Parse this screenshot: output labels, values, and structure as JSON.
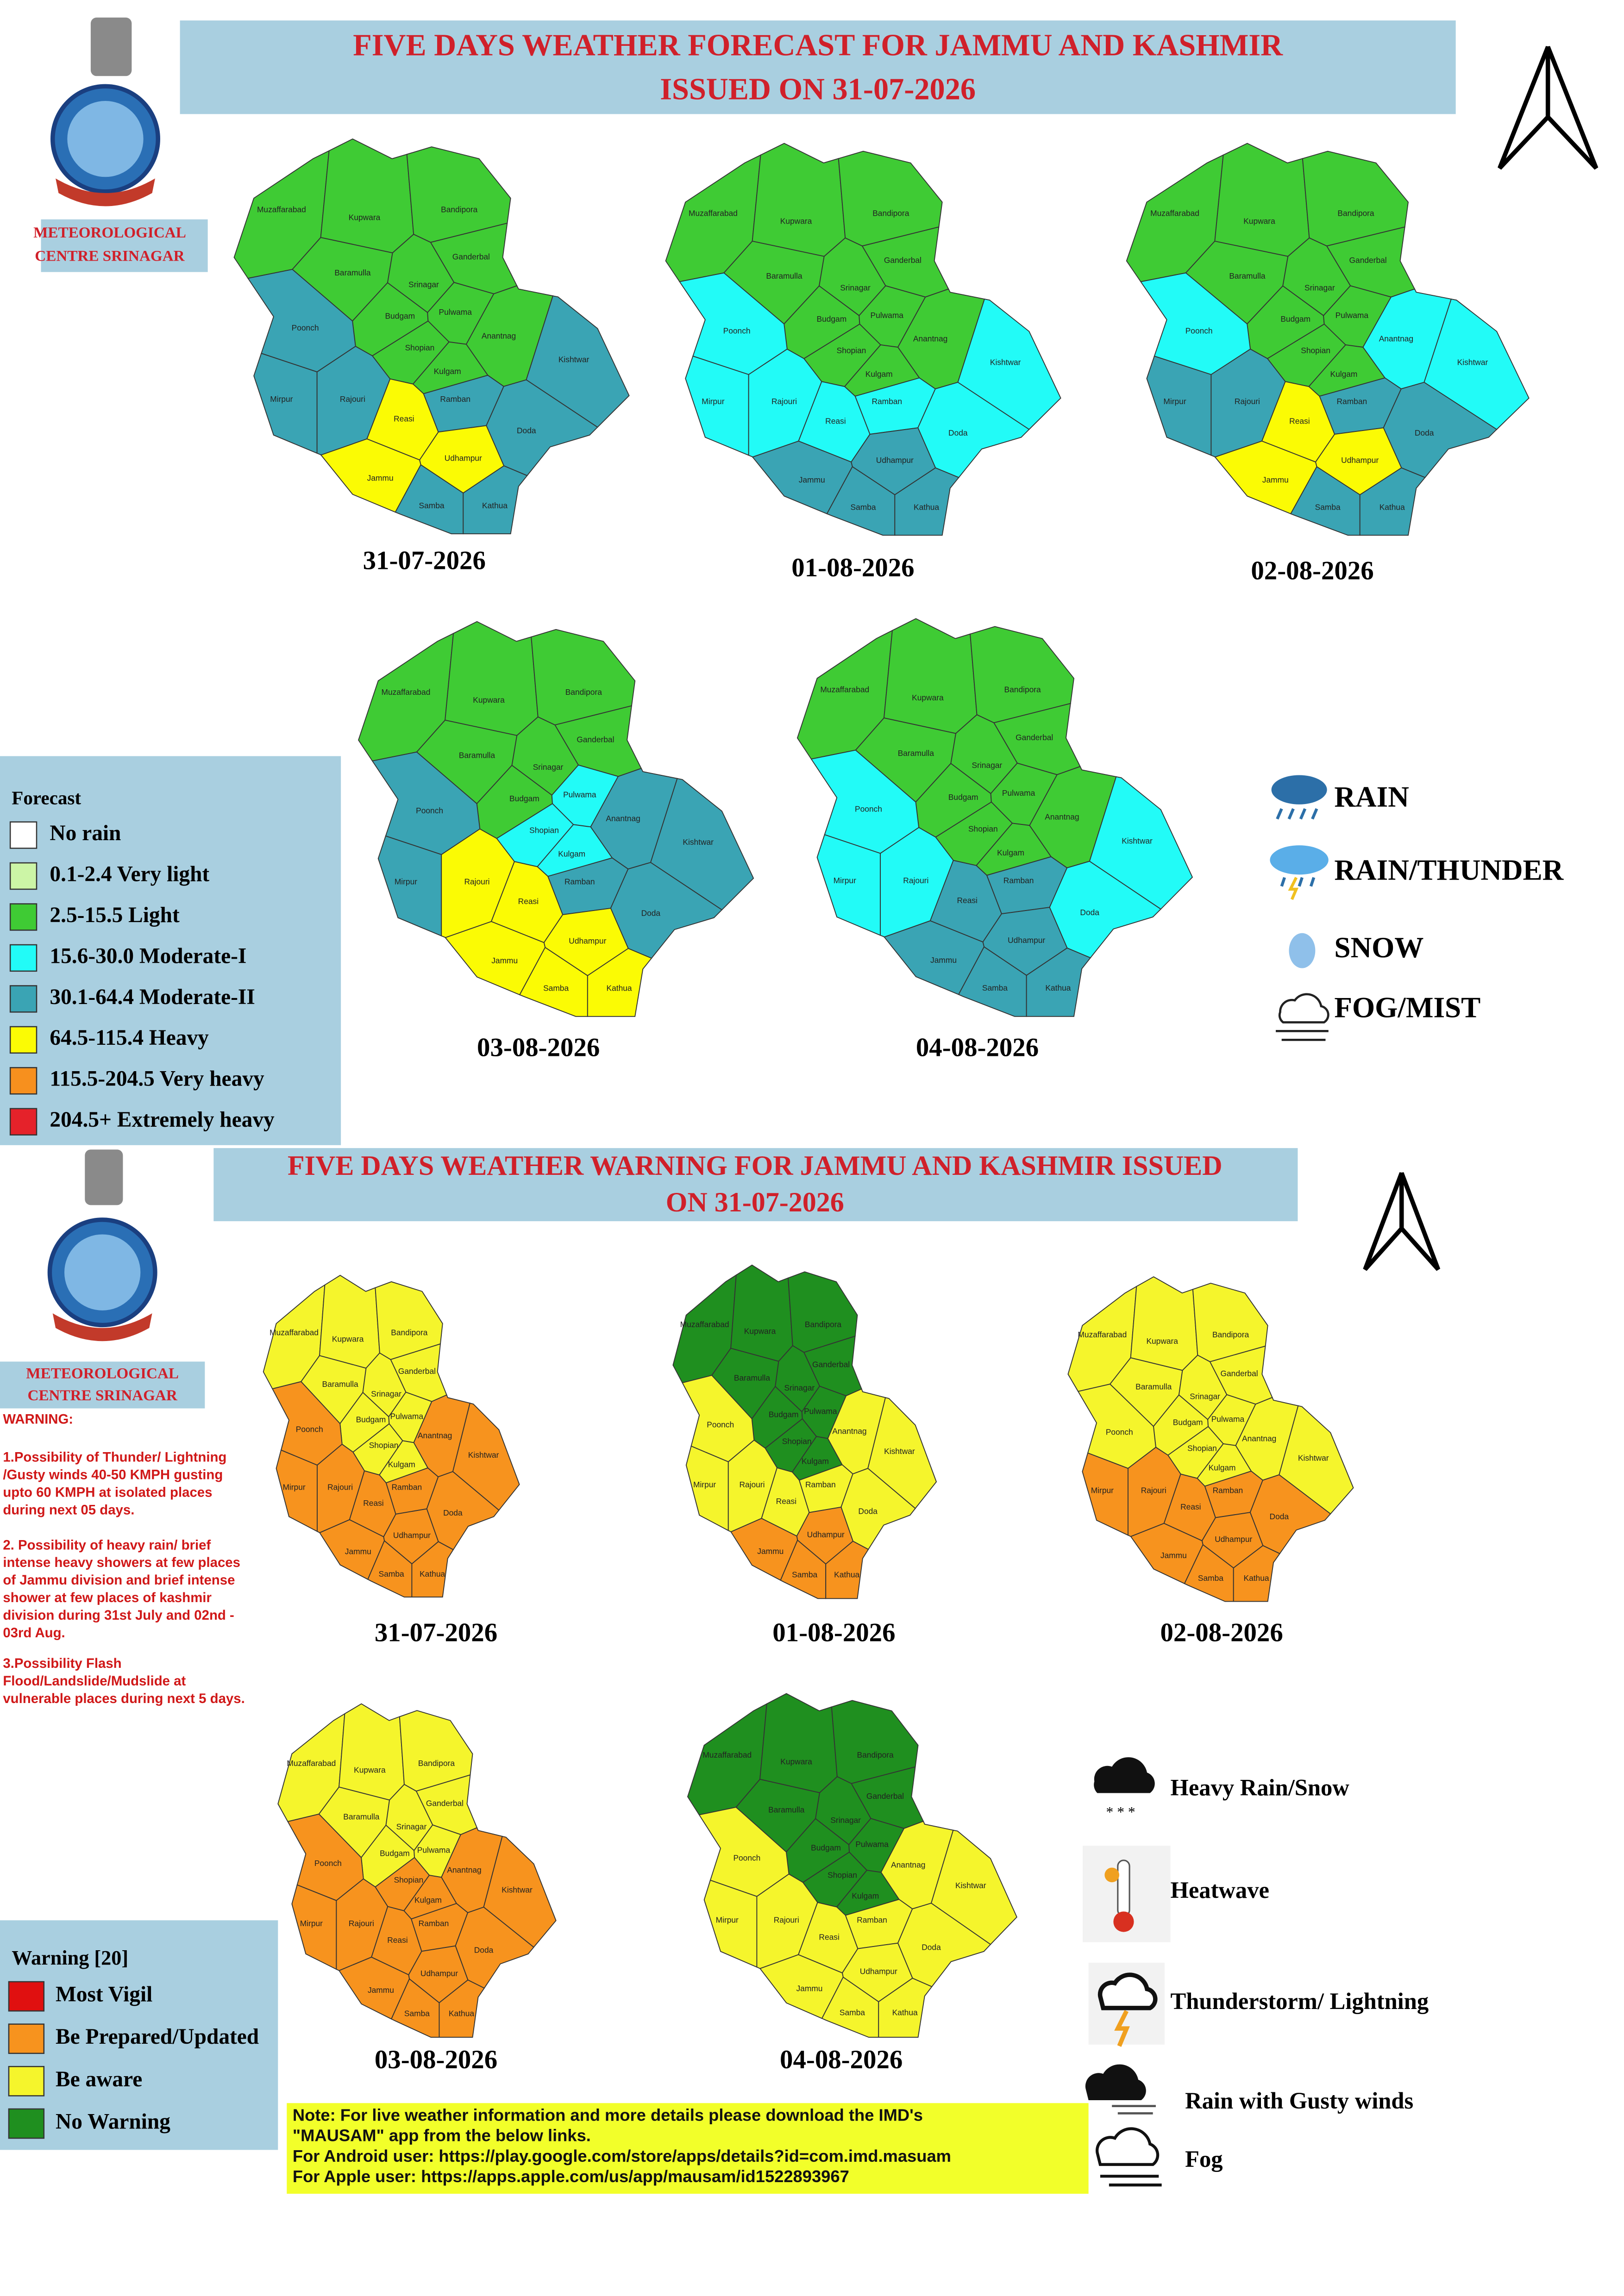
{
  "districts": [
    "Muzaffarabad",
    "Kupwara",
    "Bandipora",
    "Baramulla",
    "Ganderbal",
    "Srinagar",
    "Budgam",
    "Pulwama",
    "Anantnag",
    "Shopian",
    "Kulgam",
    "Poonch",
    "Kishtwar",
    "Mirpur",
    "Rajouri",
    "Reasi",
    "Ramban",
    "Doda",
    "Udhampur",
    "Jammu",
    "Samba",
    "Kathua"
  ],
  "forecast": {
    "title_lines": [
      "FIVE DAYS WEATHER FORECAST FOR JAMMU AND KASHMIR",
      "ISSUED ON 31-07-2026"
    ],
    "office_lines": [
      "METEOROLOGICAL",
      "CENTRE SRINAGAR"
    ],
    "legend_title": "Forecast",
    "legend": [
      {
        "label": "No rain",
        "color": "#ffffff"
      },
      {
        "label": "0.1-2.4 Very light",
        "color": "#ccf5a6"
      },
      {
        "label": "2.5-15.5 Light",
        "color": "#3fcb34"
      },
      {
        "label": "15.6-30.0 Moderate-I",
        "color": "#22fbf7"
      },
      {
        "label": "30.1-64.4 Moderate-II",
        "color": "#3aa4b4"
      },
      {
        "label": "64.5-115.4 Heavy",
        "color": "#fbfb04"
      },
      {
        "label": "115.5-204.5 Very heavy",
        "color": "#f7901e"
      },
      {
        "label": "204.5+ Extremely heavy",
        "color": "#e5222a"
      }
    ],
    "maps": [
      {
        "date": "31-07-2026",
        "levels": [
          2,
          2,
          2,
          2,
          2,
          2,
          2,
          2,
          2,
          2,
          2,
          4,
          4,
          4,
          4,
          5,
          4,
          4,
          5,
          5,
          4,
          4
        ]
      },
      {
        "date": "01-08-2026",
        "levels": [
          2,
          2,
          2,
          2,
          2,
          2,
          2,
          2,
          2,
          2,
          2,
          3,
          3,
          3,
          3,
          3,
          3,
          3,
          4,
          4,
          4,
          4
        ]
      },
      {
        "date": "02-08-2026",
        "levels": [
          2,
          2,
          2,
          2,
          2,
          2,
          2,
          2,
          3,
          2,
          2,
          3,
          3,
          4,
          4,
          5,
          4,
          4,
          5,
          5,
          4,
          4
        ]
      },
      {
        "date": "03-08-2026",
        "levels": [
          2,
          2,
          2,
          2,
          2,
          2,
          2,
          3,
          4,
          3,
          3,
          4,
          4,
          4,
          5,
          5,
          4,
          4,
          5,
          5,
          5,
          5
        ]
      },
      {
        "date": "04-08-2026",
        "levels": [
          2,
          2,
          2,
          2,
          2,
          2,
          2,
          2,
          2,
          2,
          2,
          3,
          3,
          3,
          3,
          4,
          4,
          3,
          4,
          4,
          4,
          4
        ]
      }
    ],
    "symbols": [
      "RAIN",
      "RAIN/THUNDER",
      "SNOW",
      "FOG/MIST"
    ]
  },
  "warning": {
    "title_lines": [
      "FIVE DAYS WEATHER WARNING FOR JAMMU AND KASHMIR ISSUED",
      "ON 31-07-2026"
    ],
    "office_lines": [
      "METEOROLOGICAL",
      "CENTRE SRINAGAR"
    ],
    "text_heading": "WARNING:",
    "text_paragraphs": [
      [
        "1.Possibility of Thunder/ Lightning",
        "/Gusty winds 40-50 KMPH gusting",
        "upto 60 KMPH at isolated places",
        "during next 05 days."
      ],
      [
        "2. Possibility of heavy rain/ brief",
        "intense heavy showers at  few places",
        "of Jammu division and brief intense",
        "shower at few places of kashmir",
        "division during 31st July and 02nd -",
        "03rd Aug."
      ],
      [
        "3.Possibility Flash",
        "Flood/Landslide/Mudslide at",
        "vulnerable places during next 5 days."
      ]
    ],
    "legend_title": "Warning [20]",
    "legend": [
      {
        "label": "Most Vigil",
        "color": "#e01010"
      },
      {
        "label": "Be Prepared/Updated",
        "color": "#f7931e"
      },
      {
        "label": "Be aware",
        "color": "#f5f52c"
      },
      {
        "label": "No Warning",
        "color": "#1f8f1f"
      }
    ],
    "maps": [
      {
        "date": "31-07-2026",
        "levels": [
          2,
          2,
          2,
          2,
          2,
          2,
          2,
          2,
          1,
          2,
          2,
          1,
          1,
          1,
          1,
          1,
          1,
          1,
          1,
          1,
          1,
          1
        ]
      },
      {
        "date": "01-08-2026",
        "levels": [
          3,
          3,
          3,
          3,
          3,
          3,
          3,
          3,
          2,
          3,
          3,
          2,
          2,
          2,
          2,
          2,
          2,
          2,
          1,
          1,
          1,
          1
        ]
      },
      {
        "date": "02-08-2026",
        "levels": [
          2,
          2,
          2,
          2,
          2,
          2,
          2,
          2,
          2,
          2,
          2,
          2,
          2,
          1,
          1,
          1,
          1,
          1,
          1,
          1,
          1,
          1
        ]
      },
      {
        "date": "03-08-2026",
        "levels": [
          2,
          2,
          2,
          2,
          2,
          2,
          2,
          2,
          1,
          1,
          1,
          1,
          1,
          1,
          1,
          1,
          1,
          1,
          1,
          1,
          1,
          1
        ]
      },
      {
        "date": "04-08-2026",
        "levels": [
          3,
          3,
          3,
          3,
          3,
          3,
          3,
          3,
          2,
          3,
          3,
          2,
          2,
          2,
          2,
          2,
          2,
          2,
          2,
          2,
          2,
          2
        ]
      }
    ],
    "symbols": [
      "Heavy Rain/Snow",
      "Heatwave",
      "Thunderstorm/ Lightning",
      "Rain with Gusty winds",
      "Fog"
    ]
  },
  "note_lines": [
    "Note: For live weather information and more details please download the IMD's",
    "\"MAUSAM\" app from the below links.",
    "For Android user: https://play.google.com/store/apps/details?id=com.imd.masuam",
    "For Apple user: https://apps.apple.com/us/app/mausam/id1522893967"
  ]
}
